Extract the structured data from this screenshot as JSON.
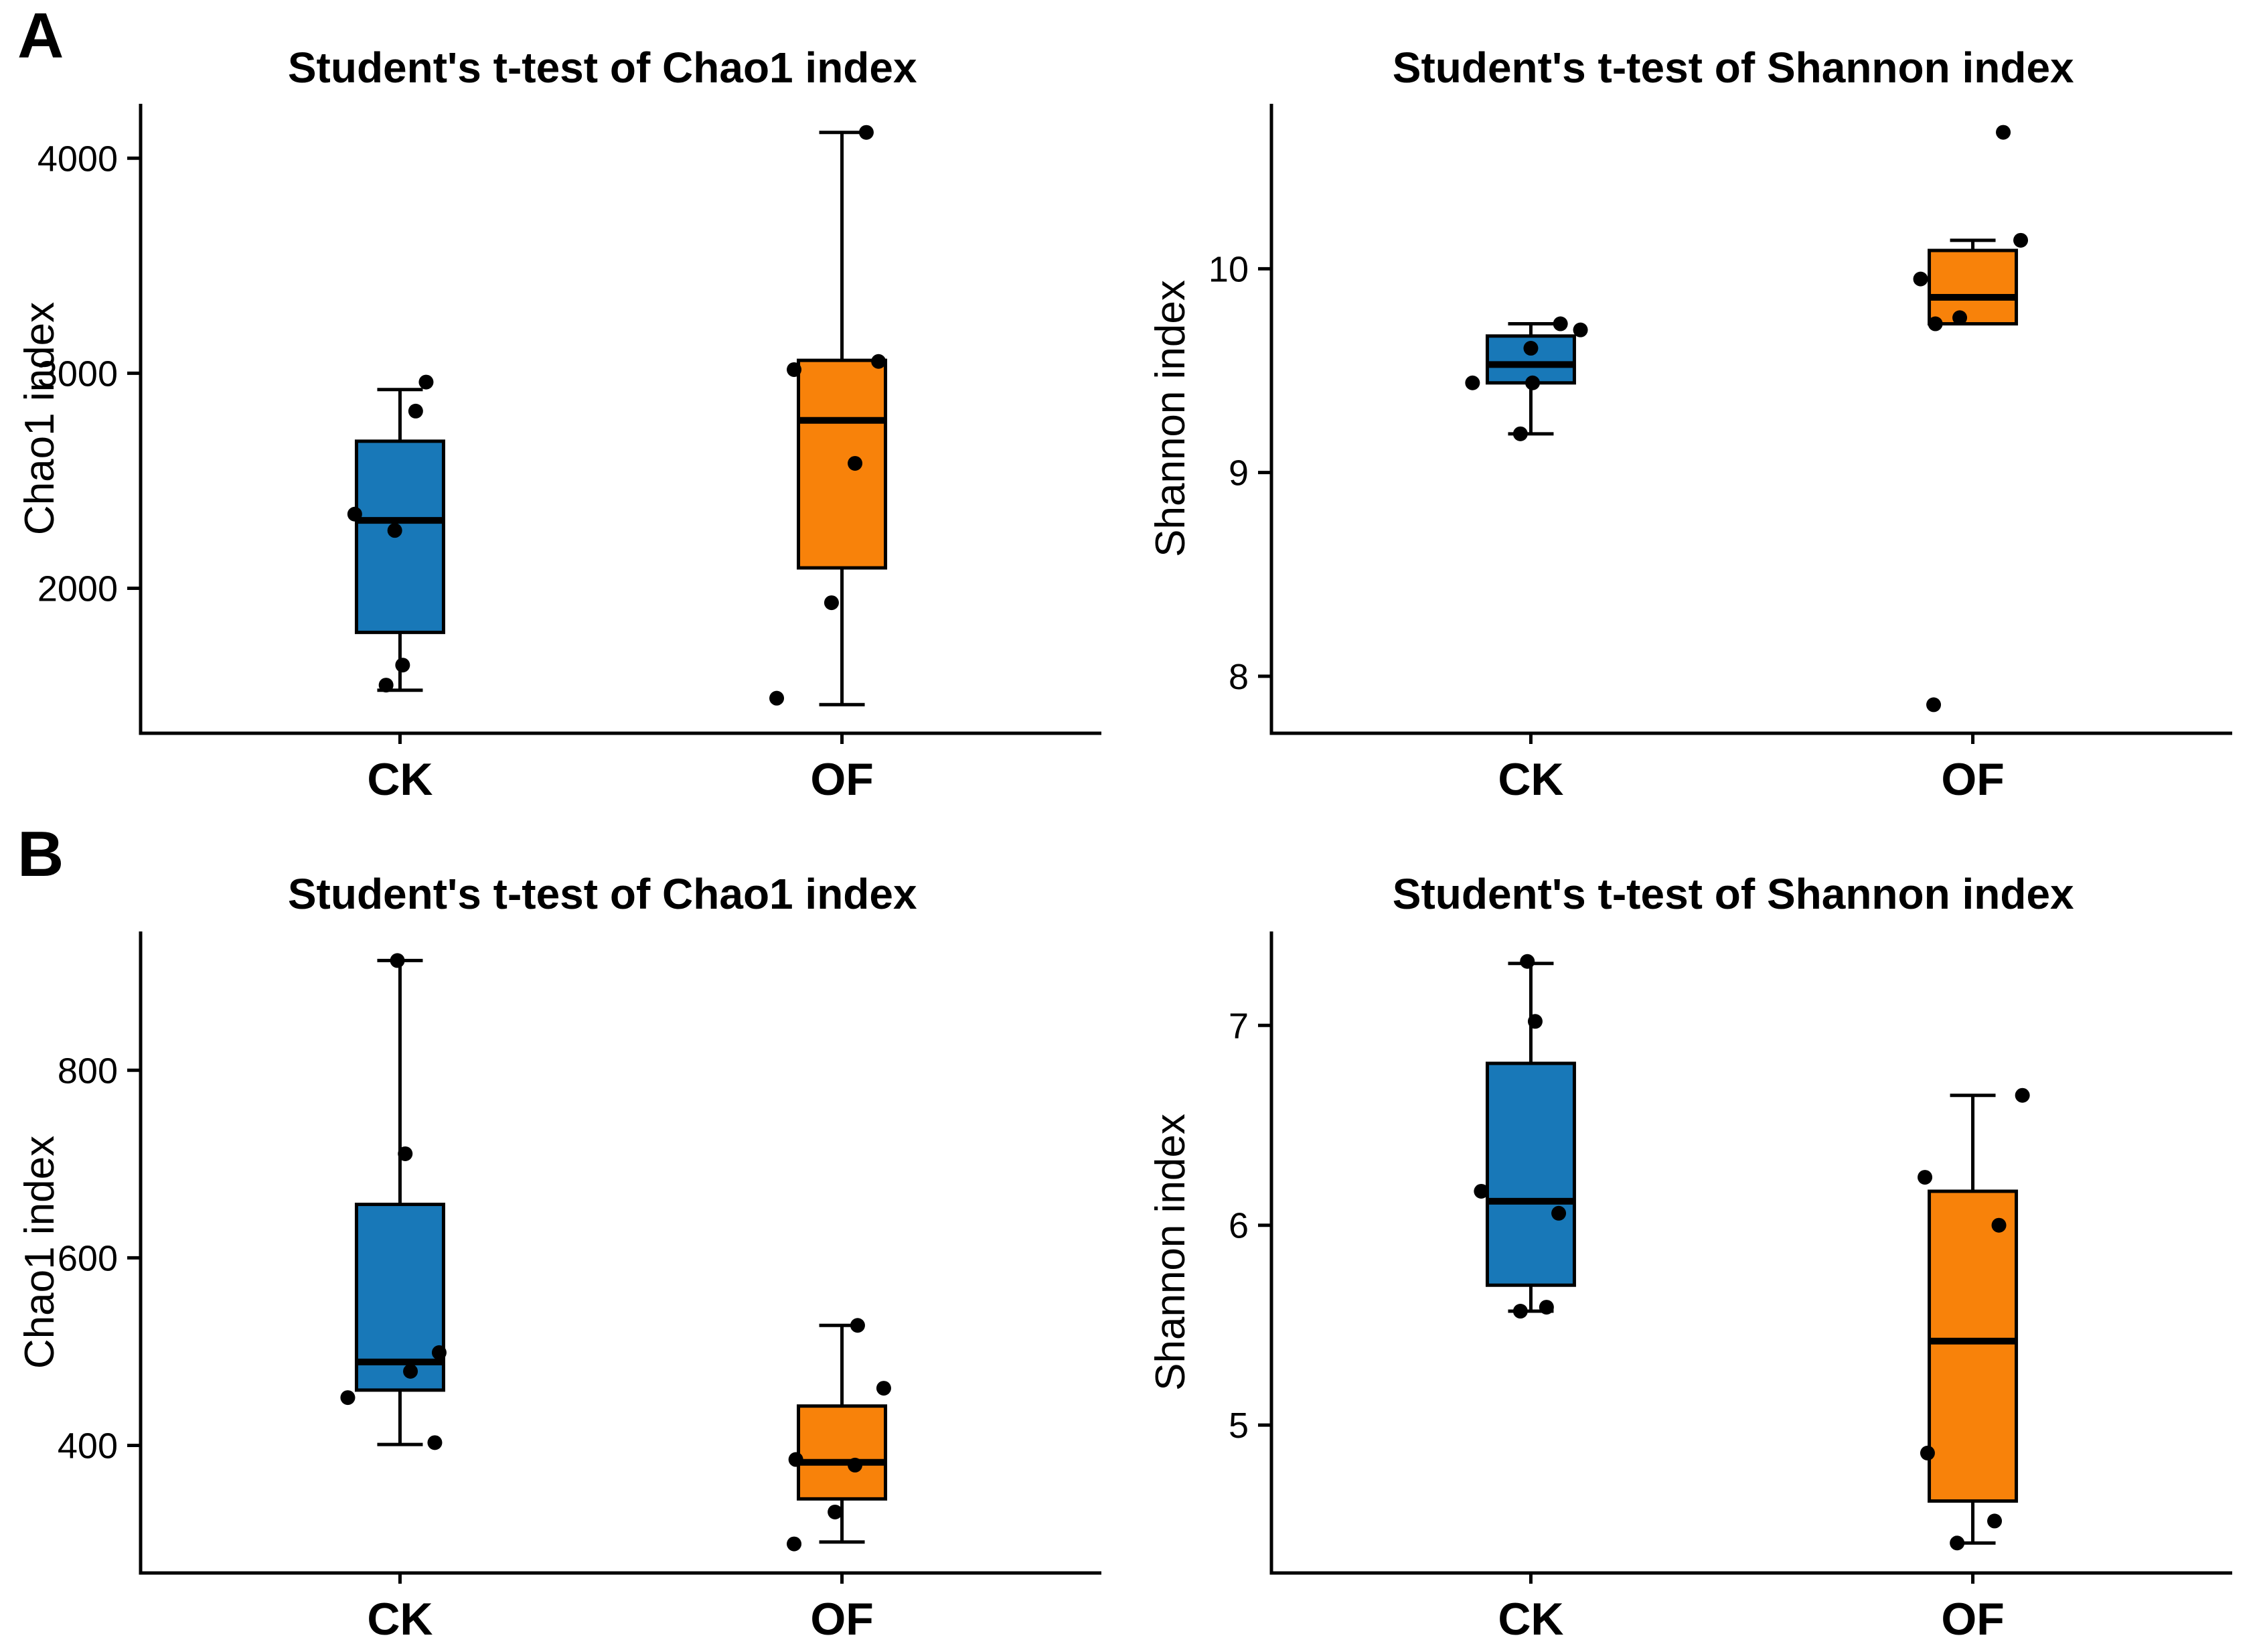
{
  "figure": {
    "panel_letters": [
      "A",
      "B"
    ],
    "background": "#ffffff"
  },
  "colors": {
    "ck_blue": "#1878b8",
    "of_orange": "#f8820a",
    "stroke": "#000000",
    "point": "#000000"
  },
  "chart_data": [
    {
      "type": "boxplot",
      "panel": "A",
      "title": "Student's t-test of Chao1 index",
      "ylabel": "Chao1 index",
      "xlabel": "",
      "categories": [
        "CK",
        "OF"
      ],
      "yticks": [
        2000,
        3000,
        4000
      ],
      "ylim": [
        1326,
        4253
      ],
      "grid": false,
      "legend": "none",
      "series": [
        {
          "name": "CK",
          "color": "#1878b8",
          "min": 1526,
          "q1": 1795,
          "median": 2316,
          "q3": 2684,
          "max": 2924,
          "points": [
            [
              2959,
              0.3
            ],
            [
              2824,
              0.18
            ],
            [
              2345,
              -0.52
            ],
            [
              2269,
              -0.06
            ],
            [
              1643,
              0.03
            ],
            [
              1550,
              -0.16
            ]
          ]
        },
        {
          "name": "OF",
          "color": "#f8820a",
          "min": 1459,
          "q1": 2095,
          "median": 2781,
          "q3": 3060,
          "max": 4120,
          "points": [
            [
              4120,
              0.28
            ],
            [
              3055,
              0.42
            ],
            [
              3017,
              -0.55
            ],
            [
              2581,
              0.15
            ],
            [
              1933,
              -0.12
            ],
            [
              1489,
              -0.75
            ]
          ]
        }
      ]
    },
    {
      "type": "boxplot",
      "panel": "A",
      "title": "Student's t-test of Shannon index",
      "ylabel": "Shannon index",
      "xlabel": "",
      "categories": [
        "CK",
        "OF"
      ],
      "yticks": [
        8,
        9,
        10
      ],
      "ylim": [
        7.72,
        10.81
      ],
      "grid": false,
      "legend": "none",
      "series": [
        {
          "name": "CK",
          "color": "#1878b8",
          "min": 9.19,
          "q1": 9.44,
          "median": 9.53,
          "q3": 9.67,
          "max": 9.73,
          "points": [
            [
              9.73,
              0.34
            ],
            [
              9.7,
              0.57
            ],
            [
              9.61,
              0.0
            ],
            [
              9.44,
              0.02
            ],
            [
              9.44,
              -0.67
            ],
            [
              9.19,
              -0.12
            ]
          ]
        },
        {
          "name": "OF",
          "color": "#f8820a",
          "min": 9.73,
          "q1": 9.73,
          "median": 9.86,
          "q3": 10.09,
          "max": 10.14,
          "points": [
            [
              10.67,
              0.35
            ],
            [
              10.14,
              0.55
            ],
            [
              9.95,
              -0.6
            ],
            [
              9.76,
              -0.15
            ],
            [
              9.73,
              -0.43
            ],
            [
              7.86,
              -0.45
            ]
          ]
        }
      ]
    },
    {
      "type": "boxplot",
      "panel": "B",
      "title": "Student's t-test of Chao1 index",
      "ylabel": "Chao1 index",
      "xlabel": "",
      "categories": [
        "CK",
        "OF"
      ],
      "yticks": [
        400,
        600,
        800
      ],
      "ylim": [
        264,
        948
      ],
      "grid": false,
      "legend": "none",
      "series": [
        {
          "name": "CK",
          "color": "#1878b8",
          "min": 401,
          "q1": 459,
          "median": 489,
          "q3": 657,
          "max": 917,
          "points": [
            [
              917,
              -0.03
            ],
            [
              711,
              0.06
            ],
            [
              499,
              0.45
            ],
            [
              479,
              0.12
            ],
            [
              451,
              -0.6
            ],
            [
              403,
              0.4
            ]
          ]
        },
        {
          "name": "OF",
          "color": "#f8820a",
          "min": 297,
          "q1": 343,
          "median": 382,
          "q3": 442,
          "max": 528,
          "points": [
            [
              528,
              0.18
            ],
            [
              461,
              0.48
            ],
            [
              385,
              -0.53
            ],
            [
              379,
              0.15
            ],
            [
              329,
              -0.08
            ],
            [
              295,
              -0.55
            ]
          ]
        }
      ]
    },
    {
      "type": "boxplot",
      "panel": "B",
      "title": "Student's t-test of Shannon index",
      "ylabel": "Shannon index",
      "xlabel": "",
      "categories": [
        "CK",
        "OF"
      ],
      "yticks": [
        5,
        6,
        7
      ],
      "ylim": [
        4.26,
        7.47
      ],
      "grid": false,
      "legend": "none",
      "series": [
        {
          "name": "CK",
          "color": "#1878b8",
          "min": 5.57,
          "q1": 5.7,
          "median": 6.12,
          "q3": 6.81,
          "max": 7.31,
          "points": [
            [
              7.32,
              -0.04
            ],
            [
              7.02,
              0.05
            ],
            [
              6.17,
              -0.57
            ],
            [
              6.06,
              0.32
            ],
            [
              5.59,
              0.18
            ],
            [
              5.57,
              -0.12
            ]
          ]
        },
        {
          "name": "OF",
          "color": "#f8820a",
          "min": 4.41,
          "q1": 4.62,
          "median": 5.42,
          "q3": 6.17,
          "max": 6.65,
          "points": [
            [
              6.65,
              0.57
            ],
            [
              6.24,
              -0.55
            ],
            [
              6.0,
              0.3
            ],
            [
              4.86,
              -0.52
            ],
            [
              4.52,
              0.25
            ],
            [
              4.41,
              -0.18
            ]
          ]
        }
      ]
    }
  ]
}
